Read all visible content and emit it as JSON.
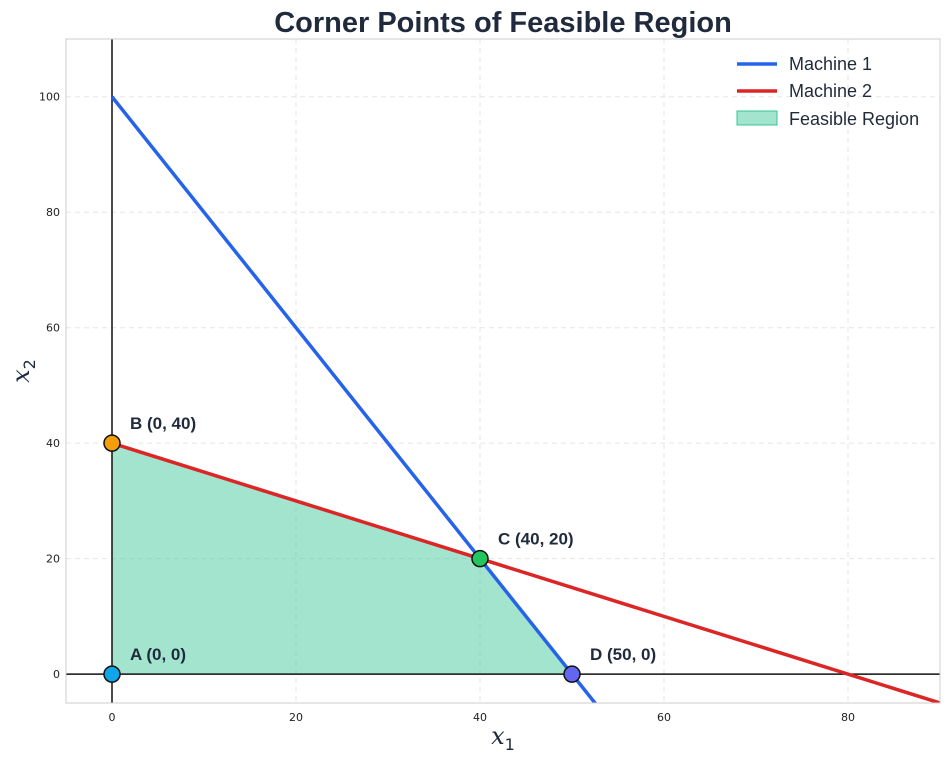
{
  "chart_data": {
    "type": "line",
    "title": "Corner Points of Feasible Region",
    "xlabel": "x",
    "xlabel_sub": "1",
    "ylabel": "x",
    "ylabel_sub": "2",
    "xlim": [
      -5,
      90
    ],
    "ylim": [
      -5,
      110
    ],
    "xticks": [
      0,
      20,
      40,
      60,
      80
    ],
    "yticks": [
      0,
      20,
      40,
      60,
      80,
      100
    ],
    "grid": true,
    "legend_position": "top-right",
    "series": [
      {
        "name": "Machine 1",
        "color": "#2563eb",
        "x": [
          0,
          60
        ],
        "y": [
          100,
          -20
        ]
      },
      {
        "name": "Machine 2",
        "color": "#dc2626",
        "x": [
          0,
          100
        ],
        "y": [
          40,
          -10
        ]
      }
    ],
    "feasible_region": {
      "name": "Feasible Region",
      "color": "#34c495",
      "polygon": [
        [
          0,
          0
        ],
        [
          0,
          40
        ],
        [
          40,
          20
        ],
        [
          50,
          0
        ]
      ]
    },
    "corner_points": [
      {
        "label": "A (0, 0)",
        "x": 0,
        "y": 0,
        "color": "#0ea5e9"
      },
      {
        "label": "B (0, 40)",
        "x": 0,
        "y": 40,
        "color": "#f59e0b"
      },
      {
        "label": "C (40, 20)",
        "x": 40,
        "y": 20,
        "color": "#22c55e"
      },
      {
        "label": "D (50, 0)",
        "x": 50,
        "y": 0,
        "color": "#6366f1"
      }
    ]
  }
}
